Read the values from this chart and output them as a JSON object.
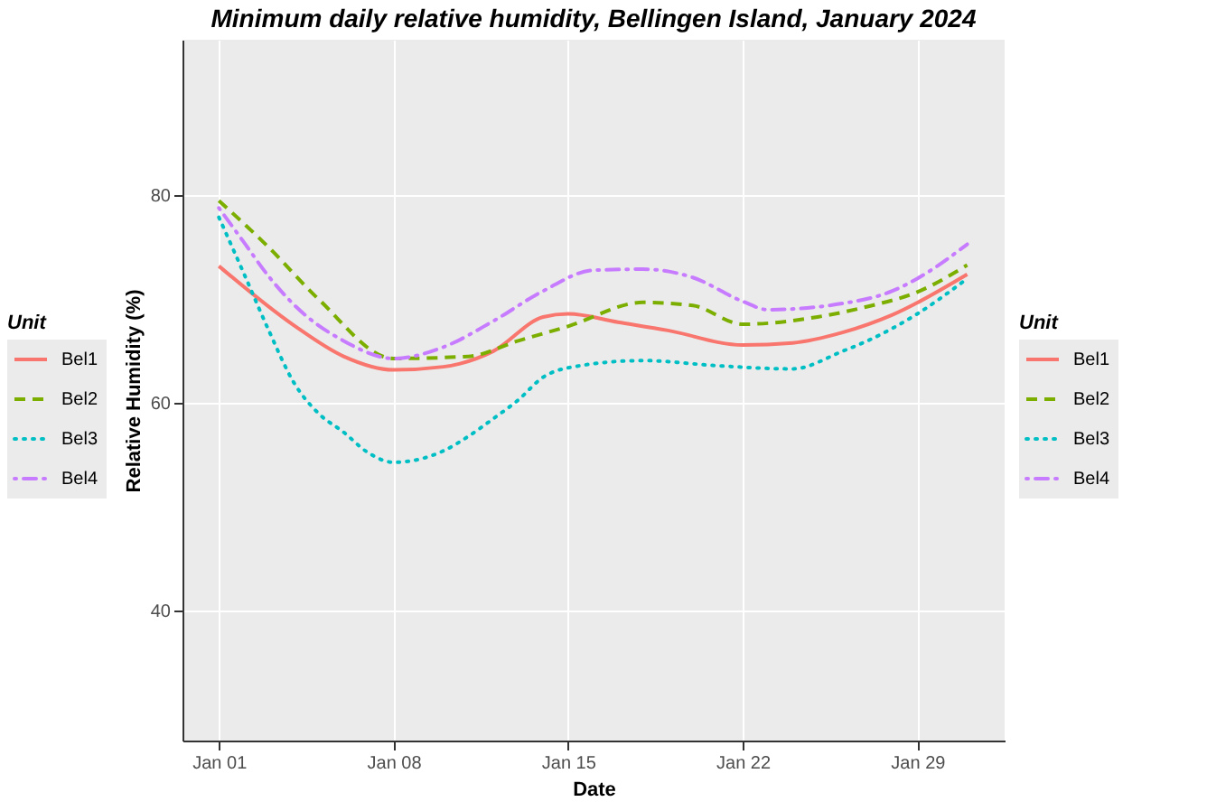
{
  "chart_data": {
    "type": "line",
    "title": "Minimum daily relative humidity, Bellingen Island, January 2024",
    "xlabel": "Date",
    "ylabel": "Relative Humidity (%)",
    "legend_title": "Unit",
    "xlim": [
      "2023-12-30T13:00",
      "2024-02-01T12:00"
    ],
    "ylim": [
      27.5,
      95
    ],
    "xticks": [
      {
        "value": "2024-01-01",
        "label": "Jan 01"
      },
      {
        "value": "2024-01-08",
        "label": "Jan 08"
      },
      {
        "value": "2024-01-15",
        "label": "Jan 15"
      },
      {
        "value": "2024-01-22",
        "label": "Jan 22"
      },
      {
        "value": "2024-01-29",
        "label": "Jan 29"
      }
    ],
    "yticks": [
      40,
      60,
      80
    ],
    "grid": true,
    "legend": [
      "left",
      "right"
    ],
    "series": [
      {
        "name": "Bel1",
        "color": "#f8766d",
        "line_style": "solid",
        "x": [
          "2024-01-01",
          "2024-01-04",
          "2024-01-06",
          "2024-01-08",
          "2024-01-10",
          "2024-01-12",
          "2024-01-14",
          "2024-01-15",
          "2024-01-17",
          "2024-01-19",
          "2024-01-22",
          "2024-01-24",
          "2024-01-26",
          "2024-01-28",
          "2024-01-31"
        ],
        "values": [
          73.2,
          67.5,
          64.5,
          63.2,
          63.5,
          65,
          68.3,
          68.6,
          67.8,
          67,
          65.6,
          65.8,
          66.8,
          68.5,
          72.4
        ]
      },
      {
        "name": "Bel2",
        "color": "#7cae00",
        "line_style": "dashed",
        "x": [
          "2024-01-01",
          "2024-01-03",
          "2024-01-05",
          "2024-01-08",
          "2024-01-11",
          "2024-01-13",
          "2024-01-15",
          "2024-01-18",
          "2024-01-20",
          "2024-01-22",
          "2024-01-25",
          "2024-01-27",
          "2024-01-29",
          "2024-01-31"
        ],
        "values": [
          79.5,
          75,
          70,
          64.3,
          64.5,
          66,
          67.4,
          69.7,
          69.4,
          67.6,
          68.3,
          69.3,
          70.7,
          73.3
        ]
      },
      {
        "name": "Bel3",
        "color": "#00bfc4",
        "line_style": "dotted",
        "x": [
          "2024-01-01",
          "2024-01-02",
          "2024-01-03",
          "2024-01-04",
          "2024-01-05",
          "2024-01-06",
          "2024-01-07",
          "2024-01-08",
          "2024-01-10",
          "2024-01-11",
          "2024-01-12",
          "2024-01-13",
          "2024-01-14",
          "2024-01-15",
          "2024-01-18",
          "2024-01-21",
          "2024-01-24",
          "2024-01-26",
          "2024-01-27",
          "2024-01-29",
          "2024-01-31"
        ],
        "values": [
          77.9,
          72.5,
          67,
          62,
          59,
          57.2,
          55.2,
          54.3,
          55.4,
          56.8,
          58.5,
          60.3,
          62.5,
          63.4,
          64.1,
          63.6,
          63.3,
          65,
          66,
          68.6,
          72
        ]
      },
      {
        "name": "Bel4",
        "color": "#c77cff",
        "line_style": "dashdot",
        "x": [
          "2024-01-01",
          "2024-01-02",
          "2024-01-03",
          "2024-01-04",
          "2024-01-06",
          "2024-01-08",
          "2024-01-10",
          "2024-01-12",
          "2024-01-14",
          "2024-01-16",
          "2024-01-18",
          "2024-01-20",
          "2024-01-22",
          "2024-01-23",
          "2024-01-26",
          "2024-01-28",
          "2024-01-29",
          "2024-01-31"
        ],
        "values": [
          78.8,
          75.5,
          72.2,
          69.5,
          66,
          64.3,
          65.4,
          67.9,
          70.8,
          72.8,
          72.9,
          72.1,
          69.8,
          69,
          69.6,
          70.8,
          72,
          75.3
        ]
      }
    ]
  }
}
